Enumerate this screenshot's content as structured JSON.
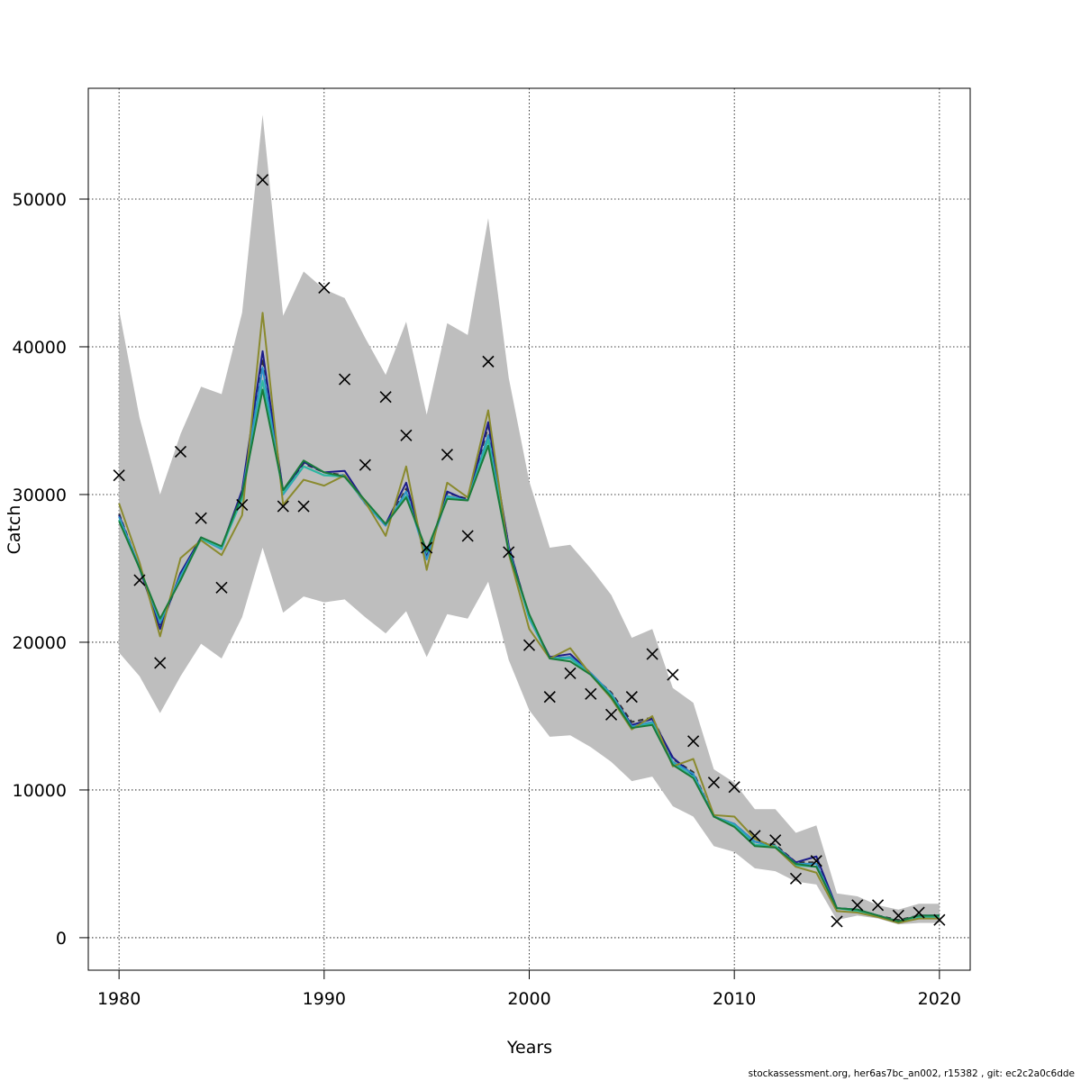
{
  "chart_data": {
    "type": "line",
    "xlabel": "Years",
    "ylabel": "Catch",
    "xlim": [
      1978.5,
      2021.5
    ],
    "ylim": [
      -2200,
      57500
    ],
    "xticks": [
      1980,
      1990,
      2000,
      2010,
      2020
    ],
    "xtick_labels": [
      "1980",
      "1990",
      "2000",
      "2010",
      "2020"
    ],
    "yticks": [
      0,
      10000,
      20000,
      30000,
      40000,
      50000
    ],
    "ytick_labels": [
      "0",
      "10000",
      "20000",
      "30000",
      "40000",
      "50000"
    ],
    "grid": true,
    "legend": "none",
    "years": [
      1980,
      1981,
      1982,
      1983,
      1984,
      1985,
      1986,
      1987,
      1988,
      1989,
      1990,
      1991,
      1992,
      1993,
      1994,
      1995,
      1996,
      1997,
      1998,
      1999,
      2000,
      2001,
      2002,
      2003,
      2004,
      2005,
      2006,
      2007,
      2008,
      2009,
      2010,
      2011,
      2012,
      2013,
      2014,
      2015,
      2016,
      2017,
      2018,
      2019,
      2020
    ],
    "confidence_band": {
      "color": "#bebebe",
      "lower": [
        19300,
        17700,
        15200,
        17700,
        19900,
        18900,
        21700,
        26400,
        22000,
        23100,
        22700,
        22900,
        21700,
        20600,
        22100,
        19000,
        21900,
        21600,
        24100,
        18800,
        15400,
        13600,
        13700,
        12900,
        11900,
        10600,
        10900,
        8900,
        8200,
        6200,
        5800,
        4700,
        4500,
        3800,
        3600,
        1200,
        1500,
        1300,
        900,
        1000,
        1000
      ],
      "upper": [
        42500,
        35200,
        30000,
        34100,
        37300,
        36800,
        42300,
        55700,
        42100,
        45100,
        43900,
        43300,
        40600,
        38100,
        41700,
        35400,
        41600,
        40800,
        48700,
        37900,
        30900,
        26400,
        26600,
        25000,
        23200,
        20300,
        20900,
        16900,
        15900,
        11400,
        10500,
        8700,
        8700,
        7100,
        7600,
        3000,
        2800,
        2200,
        1900,
        2300,
        2300
      ]
    },
    "observed": {
      "marker": "x",
      "color": "#000000",
      "values": [
        31300,
        24200,
        18600,
        32900,
        28400,
        23700,
        29300,
        51300,
        29200,
        29200,
        44000,
        37800,
        32000,
        36600,
        34000,
        26400,
        32700,
        27200,
        39000,
        26100,
        19800,
        16300,
        17900,
        16500,
        15100,
        16300,
        19200,
        17800,
        13300,
        10500,
        10200,
        6900,
        6600,
        4000,
        5200,
        1100,
        2200,
        2200,
        1500,
        1700,
        1200
      ]
    },
    "series": [
      {
        "color": "#333333",
        "dashed": true,
        "values": [
          28700,
          25000,
          21200,
          24400,
          27000,
          26400,
          30200,
          39200,
          30200,
          32100,
          31500,
          31300,
          29400,
          27900,
          30400,
          25800,
          30100,
          29700,
          34600,
          26500,
          21700,
          18900,
          19000,
          17800,
          16600,
          14600,
          14900,
          12100,
          11200,
          8200,
          7700,
          6500,
          6300,
          5100,
          5100,
          2000,
          1900,
          1500,
          1200,
          1500,
          1500
        ]
      },
      {
        "color": "#1c1c8a",
        "values": [
          28600,
          25000,
          20900,
          24700,
          27100,
          26400,
          30300,
          39700,
          30200,
          32200,
          31500,
          31600,
          29500,
          28000,
          30800,
          25700,
          30200,
          29600,
          34900,
          26500,
          21700,
          19000,
          19200,
          17900,
          16500,
          14400,
          14800,
          12200,
          11000,
          8200,
          7700,
          6500,
          6200,
          5100,
          5500,
          2000,
          1900,
          1500,
          1100,
          1500,
          1500
        ]
      },
      {
        "color": "#2e93c9",
        "values": [
          28500,
          25100,
          21300,
          24500,
          27000,
          26300,
          30000,
          38600,
          30000,
          31900,
          31300,
          31300,
          29400,
          27900,
          30200,
          25600,
          29900,
          29600,
          34000,
          26300,
          21600,
          18900,
          19000,
          17900,
          16500,
          14300,
          14600,
          11900,
          11100,
          8200,
          7700,
          6500,
          6200,
          5000,
          5000,
          2000,
          1900,
          1500,
          1100,
          1500,
          1500
        ]
      },
      {
        "color": "#2eb8a0",
        "values": [
          28300,
          25000,
          21500,
          24300,
          27000,
          26400,
          29700,
          37700,
          30100,
          31900,
          31300,
          31200,
          29500,
          28000,
          29900,
          26100,
          29800,
          29600,
          33700,
          26200,
          21700,
          18900,
          18900,
          17800,
          16400,
          14200,
          14500,
          11800,
          10900,
          8200,
          7600,
          6300,
          6200,
          4900,
          4800,
          2000,
          1800,
          1500,
          1000,
          1400,
          1400
        ]
      },
      {
        "color": "#8a8a2e",
        "values": [
          29400,
          25400,
          20400,
          25700,
          26900,
          25900,
          28600,
          42300,
          29300,
          31000,
          30600,
          31300,
          29500,
          27200,
          31900,
          24900,
          30800,
          29800,
          35700,
          26000,
          20900,
          18900,
          19600,
          17800,
          16200,
          14100,
          15000,
          11600,
          12100,
          8300,
          8200,
          6700,
          6100,
          4800,
          4400,
          1800,
          1700,
          1400,
          1000,
          1300,
          1300
        ]
      },
      {
        "color": "#1a7a3a",
        "values": [
          28200,
          25000,
          21600,
          24200,
          27100,
          26500,
          30000,
          37100,
          30300,
          32300,
          31500,
          31200,
          29600,
          28000,
          29800,
          26200,
          29700,
          29600,
          33300,
          26100,
          21900,
          18900,
          18700,
          17800,
          16300,
          14200,
          14400,
          11700,
          10800,
          8200,
          7500,
          6200,
          6100,
          5000,
          4800,
          2000,
          1900,
          1500,
          1100,
          1500,
          1500
        ]
      }
    ]
  },
  "footer_text": "stockassessment.org, her6as7bc_an002, r15382 , git: ec2c2a0c6dde"
}
